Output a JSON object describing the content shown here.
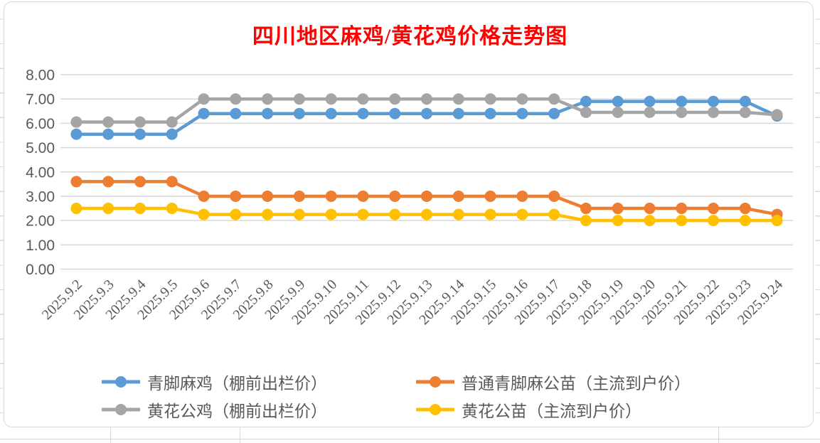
{
  "chart_data": {
    "type": "line",
    "title": "四川地区麻鸡/黄花鸡价格走势图",
    "title_color": "#FF0000",
    "categories": [
      "2025.9.2",
      "2025.9.3",
      "2025.9.4",
      "2025.9.5",
      "2025.9.6",
      "2025.9.7",
      "2025.9.8",
      "2025.9.9",
      "2025.9.10",
      "2025.9.11",
      "2025.9.12",
      "2025.9.13",
      "2025.9.14",
      "2025.9.15",
      "2025.9.16",
      "2025.9.17",
      "2025.9.18",
      "2025.9.19",
      "2025.9.20",
      "2025.9.21",
      "2025.9.22",
      "2025.9.23",
      "2025.9.24"
    ],
    "series": [
      {
        "name": "青脚麻鸡（棚前出栏价）",
        "color": "#5B9BD5",
        "values": [
          5.55,
          5.55,
          5.55,
          5.55,
          6.4,
          6.4,
          6.4,
          6.4,
          6.4,
          6.4,
          6.4,
          6.4,
          6.4,
          6.4,
          6.4,
          6.4,
          6.9,
          6.9,
          6.9,
          6.9,
          6.9,
          6.9,
          6.3
        ]
      },
      {
        "name": "普通青脚麻公苗（主流到户价）",
        "color": "#ED7D31",
        "values": [
          3.6,
          3.6,
          3.6,
          3.6,
          3.0,
          3.0,
          3.0,
          3.0,
          3.0,
          3.0,
          3.0,
          3.0,
          3.0,
          3.0,
          3.0,
          3.0,
          2.5,
          2.5,
          2.5,
          2.5,
          2.5,
          2.5,
          2.25
        ]
      },
      {
        "name": "黄花公鸡（棚前出栏价）",
        "color": "#A5A5A5",
        "values": [
          6.05,
          6.05,
          6.05,
          6.05,
          7.0,
          7.0,
          7.0,
          7.0,
          7.0,
          7.0,
          7.0,
          7.0,
          7.0,
          7.0,
          7.0,
          7.0,
          6.45,
          6.45,
          6.45,
          6.45,
          6.45,
          6.45,
          6.35
        ]
      },
      {
        "name": "黄花公苗（主流到户价）",
        "color": "#FFC000",
        "values": [
          2.5,
          2.5,
          2.5,
          2.5,
          2.25,
          2.25,
          2.25,
          2.25,
          2.25,
          2.25,
          2.25,
          2.25,
          2.25,
          2.25,
          2.25,
          2.25,
          2.0,
          2.0,
          2.0,
          2.0,
          2.0,
          2.0,
          2.0
        ]
      }
    ],
    "ylim": [
      0,
      8
    ],
    "yticks": [
      "0.00",
      "1.00",
      "2.00",
      "3.00",
      "4.00",
      "5.00",
      "6.00",
      "7.00",
      "8.00"
    ],
    "grid": true,
    "legend_position": "bottom",
    "axis_text_color": "#595959",
    "gridline_color": "#D9D9D9"
  }
}
